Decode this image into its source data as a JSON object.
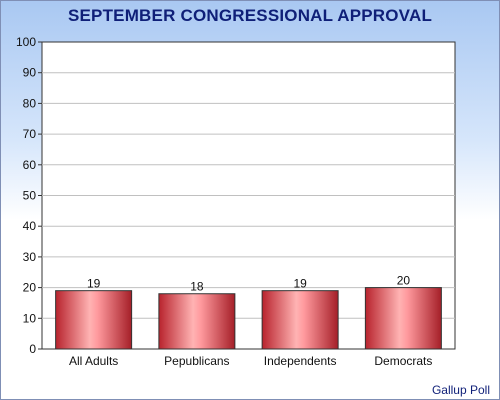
{
  "chart_data": {
    "type": "bar",
    "title": "SEPTEMBER CONGRESSIONAL APPROVAL",
    "categories": [
      "All Adults",
      "Pepublicans",
      "Independents",
      "Democrats"
    ],
    "values": [
      19,
      18,
      19,
      20
    ],
    "data_labels": [
      "19",
      "18",
      "19",
      "20"
    ],
    "ylim": [
      0,
      100
    ],
    "yticks": [
      "0",
      "10",
      "20",
      "30",
      "40",
      "50",
      "60",
      "70",
      "80",
      "90",
      "100"
    ],
    "grid": true,
    "bar_color": "#e0474f",
    "source": "Gallup Poll"
  }
}
